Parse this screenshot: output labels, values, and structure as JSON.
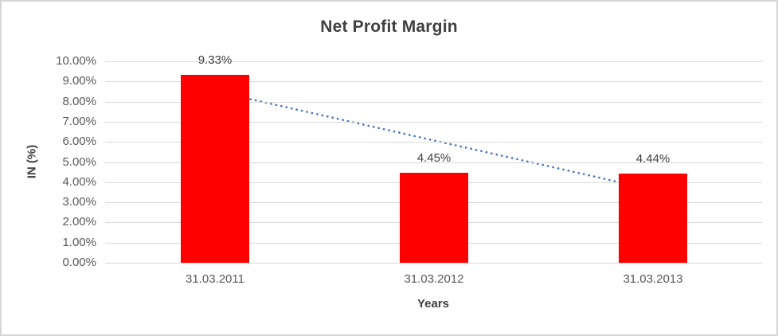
{
  "frame": {
    "border_color": "#d6d6d6",
    "background": "#ffffff"
  },
  "chart_data": {
    "type": "bar",
    "title": "Net Profit Margin",
    "xlabel": "Years",
    "ylabel": "IN (%)",
    "categories": [
      "31.03.2011",
      "31.03.2012",
      "31.03.2013"
    ],
    "values": [
      9.33,
      4.45,
      4.44
    ],
    "data_labels": [
      "9.33%",
      "4.45%",
      "4.44%"
    ],
    "ylim": [
      0,
      10
    ],
    "ytick_step": 1,
    "ytick_labels": [
      "0.00%",
      "1.00%",
      "2.00%",
      "3.00%",
      "4.00%",
      "5.00%",
      "6.00%",
      "7.00%",
      "8.00%",
      "9.00%",
      "10.00%"
    ],
    "grid": true,
    "legend": "none",
    "bar_color": "#ff0000",
    "gridline_color": "#d9d9d9",
    "title_color": "#404040",
    "tick_color": "#595959",
    "trendline": {
      "style": "dotted",
      "color": "#4472c4",
      "from_value": 8.52,
      "to_value": 3.63
    }
  }
}
